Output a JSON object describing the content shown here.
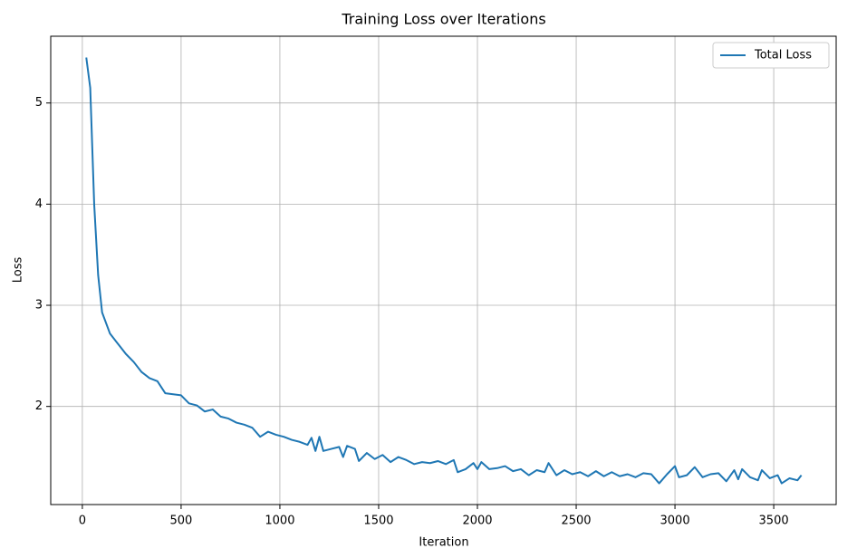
{
  "chart_data": {
    "type": "line",
    "title": "Training Loss over Iterations",
    "x_label": "Iteration",
    "y_label": "Loss",
    "x": [
      20,
      40,
      60,
      80,
      100,
      140,
      180,
      220,
      260,
      300,
      340,
      380,
      420,
      460,
      500,
      540,
      580,
      620,
      660,
      700,
      740,
      780,
      820,
      860,
      900,
      940,
      980,
      1020,
      1060,
      1100,
      1140,
      1160,
      1180,
      1200,
      1220,
      1260,
      1300,
      1320,
      1340,
      1380,
      1400,
      1440,
      1480,
      1520,
      1560,
      1600,
      1640,
      1680,
      1720,
      1760,
      1800,
      1840,
      1880,
      1900,
      1940,
      1980,
      2000,
      2020,
      2060,
      2100,
      2140,
      2180,
      2220,
      2260,
      2300,
      2340,
      2360,
      2400,
      2440,
      2480,
      2520,
      2560,
      2600,
      2640,
      2680,
      2720,
      2760,
      2800,
      2840,
      2880,
      2920,
      2960,
      3000,
      3020,
      3060,
      3100,
      3140,
      3180,
      3220,
      3260,
      3300,
      3320,
      3340,
      3380,
      3420,
      3440,
      3480,
      3520,
      3540,
      3580,
      3620,
      3640
    ],
    "series": [
      {
        "name": "Total Loss",
        "color": "#1f77b4",
        "values": [
          5.45,
          5.15,
          4.0,
          3.3,
          2.93,
          2.72,
          2.62,
          2.52,
          2.44,
          2.34,
          2.28,
          2.25,
          2.13,
          2.12,
          2.11,
          2.03,
          2.01,
          1.95,
          1.97,
          1.9,
          1.88,
          1.84,
          1.82,
          1.79,
          1.7,
          1.75,
          1.72,
          1.7,
          1.67,
          1.65,
          1.62,
          1.69,
          1.56,
          1.7,
          1.56,
          1.58,
          1.6,
          1.5,
          1.61,
          1.58,
          1.46,
          1.54,
          1.48,
          1.52,
          1.45,
          1.5,
          1.47,
          1.43,
          1.45,
          1.44,
          1.46,
          1.43,
          1.47,
          1.35,
          1.38,
          1.44,
          1.38,
          1.45,
          1.38,
          1.39,
          1.41,
          1.36,
          1.38,
          1.32,
          1.37,
          1.35,
          1.44,
          1.32,
          1.37,
          1.33,
          1.35,
          1.31,
          1.36,
          1.31,
          1.35,
          1.31,
          1.33,
          1.3,
          1.34,
          1.33,
          1.24,
          1.33,
          1.41,
          1.3,
          1.32,
          1.4,
          1.3,
          1.33,
          1.34,
          1.26,
          1.37,
          1.28,
          1.38,
          1.3,
          1.27,
          1.37,
          1.29,
          1.32,
          1.24,
          1.29,
          1.27,
          1.32
        ]
      }
    ],
    "xlim": [
      -160,
      3816
    ],
    "ylim": [
      1.03,
      5.66
    ],
    "xticks": [
      0,
      500,
      1000,
      1500,
      2000,
      2500,
      3000,
      3500
    ],
    "yticks": [
      2,
      3,
      4,
      5
    ],
    "grid": true,
    "legend": "upper right"
  }
}
